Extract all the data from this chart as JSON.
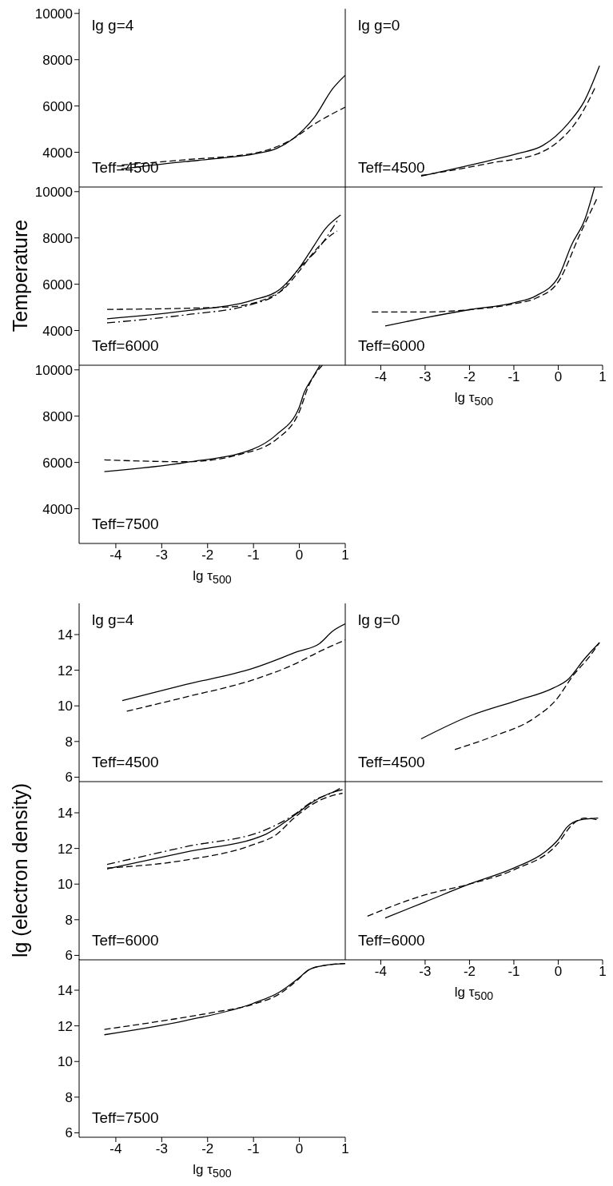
{
  "chart_data": [
    {
      "type": "line",
      "title": "lg g=4",
      "annotations": [
        "Teff=4500"
      ],
      "xlim": [
        -4.8,
        1
      ],
      "xticks": [
        -4,
        -3,
        -2,
        -1,
        0,
        1
      ],
      "ylim": [
        2500,
        10200
      ],
      "yticks": [
        4000,
        6000,
        8000,
        10000
      ],
      "tick_labels": "y",
      "series": [
        {
          "color": "#000000",
          "line_style": "solid",
          "x": [
            -3.88,
            -2.48,
            -1.89,
            -0.96,
            -0.49,
            -0.14,
            0.32,
            0.73,
            1.0
          ],
          "values": [
            3280,
            3600,
            3710,
            3940,
            4170,
            4580,
            5490,
            6760,
            7330
          ]
        },
        {
          "color": "#000000",
          "line_style": "dashed",
          "x": [
            -3.87,
            -2.48,
            -0.96,
            -0.14,
            0.32,
            1.0
          ],
          "values": [
            3450,
            3680,
            3970,
            4580,
            5210,
            5950
          ]
        }
      ]
    },
    {
      "type": "line",
      "title": "lg g=0",
      "annotations": [
        "Teff=4500"
      ],
      "xlim": [
        -4.8,
        1
      ],
      "xticks": [
        -4,
        -3,
        -2,
        -1,
        0,
        1
      ],
      "ylim": [
        2500,
        10200
      ],
      "yticks": [
        4000,
        6000,
        8000,
        10000
      ],
      "tick_labels": false,
      "series": [
        {
          "color": "#000000",
          "line_style": "solid",
          "x": [
            -3.09,
            -1.51,
            -0.93,
            -0.35,
            0.23,
            0.58,
            0.93
          ],
          "values": [
            2970,
            3660,
            3940,
            4290,
            5260,
            6180,
            7740
          ]
        },
        {
          "color": "#000000",
          "line_style": "dashed",
          "x": [
            -3.09,
            -2.45,
            -1.51,
            -0.46,
            0.0,
            0.47,
            0.85
          ],
          "values": [
            3000,
            3200,
            3540,
            3940,
            4460,
            5490,
            6870
          ]
        }
      ]
    },
    {
      "type": "line",
      "ylabel": "Temperature",
      "annotations": [
        "Teff=6000"
      ],
      "xlim": [
        -4.8,
        1
      ],
      "xticks": [
        -4,
        -3,
        -2,
        -1,
        0,
        1
      ],
      "ylim": [
        2500,
        10200
      ],
      "yticks": [
        4000,
        6000,
        8000,
        10000
      ],
      "tick_labels": "y",
      "series": [
        {
          "color": "#000000",
          "line_style": "solid",
          "x": [
            -4.19,
            -2.47,
            -1.02,
            -0.43,
            -0.03,
            0.32,
            0.55,
            0.9
          ],
          "values": [
            4510,
            4850,
            5310,
            5770,
            6630,
            7670,
            8360,
            8990
          ]
        },
        {
          "color": "#000000",
          "line_style": "dashed",
          "x": [
            -4.19,
            -1.54,
            -0.43,
            -0.03,
            0.32,
            0.62,
            0.82
          ],
          "values": [
            4910,
            5020,
            5660,
            6500,
            7400,
            8010,
            8300
          ]
        },
        {
          "color": "#000000",
          "line_style": "dashdot",
          "x": [
            -4.19,
            -2.47,
            -1.02,
            -0.43,
            -0.03,
            0.44,
            0.85
          ],
          "values": [
            4330,
            4680,
            5140,
            5660,
            6630,
            7610,
            8820
          ]
        }
      ]
    },
    {
      "type": "line",
      "xlabel": "lg τ$_{500}$",
      "annotations": [
        "Teff=6000"
      ],
      "xlim": [
        -4.8,
        1
      ],
      "xticks": [
        -4,
        -3,
        -2,
        -1,
        0,
        1
      ],
      "ylim": [
        2500,
        10200
      ],
      "yticks": [
        4000,
        6000,
        8000,
        10000
      ],
      "tick_labels": "x",
      "series": [
        {
          "color": "#000000",
          "line_style": "solid",
          "x": [
            -3.9,
            -3,
            -2,
            -1,
            -0.5,
            0,
            0.3,
            0.6,
            0.82
          ],
          "values": [
            4200,
            4550,
            4900,
            5200,
            5500,
            6300,
            7700,
            8800,
            10200
          ]
        },
        {
          "color": "#000000",
          "line_style": "dashed",
          "x": [
            -4.2,
            -3,
            -2,
            -1,
            -0.5,
            0,
            0.5,
            0.88
          ],
          "values": [
            4800,
            4800,
            4900,
            5150,
            5400,
            6100,
            8200,
            9730
          ]
        }
      ]
    },
    {
      "type": "line",
      "xlabel": "lg τ$_{500}$",
      "annotations": [
        "Teff=7500"
      ],
      "xlim": [
        -4.8,
        1
      ],
      "xticks": [
        -4,
        -3,
        -2,
        -1,
        0,
        1
      ],
      "ylim": [
        2500,
        10200
      ],
      "yticks": [
        4000,
        6000,
        8000,
        10000
      ],
      "series": [
        {
          "color": "#000000",
          "line_style": "solid",
          "x": [
            -4.25,
            -2.47,
            -1.02,
            -0.5,
            0,
            0.1,
            0.3,
            0.45
          ],
          "values": [
            5600,
            6000,
            6570,
            7200,
            8400,
            9000,
            9700,
            10200
          ]
        },
        {
          "color": "#000000",
          "line_style": "dashed",
          "x": [
            -4.25,
            -2.47,
            -1.31,
            -0.5,
            0,
            0.2,
            0.5
          ],
          "values": [
            6110,
            6030,
            6340,
            7000,
            8200,
            9300,
            10200
          ]
        }
      ]
    },
    {
      "type": "line",
      "title": "lg g=4",
      "annotations": [
        "Teff=4500"
      ],
      "xlim": [
        -4.8,
        1
      ],
      "xticks": [
        -4,
        -3,
        -2,
        -1,
        0,
        1
      ],
      "ylim": [
        5.75,
        15.75
      ],
      "yticks": [
        6,
        8,
        10,
        12,
        14
      ],
      "tick_labels": "y",
      "series": [
        {
          "color": "#000000",
          "line_style": "solid",
          "x": [
            -3.86,
            -2.47,
            -1.02,
            -0.03,
            0.44,
            0.73,
            1.0
          ],
          "values": [
            10.3,
            11.2,
            12.1,
            13.05,
            13.5,
            14.2,
            14.6
          ]
        },
        {
          "color": "#000000",
          "line_style": "dashed",
          "x": [
            -3.76,
            -2.47,
            -1.02,
            -0.14,
            0.44,
            1.0
          ],
          "values": [
            9.7,
            10.5,
            11.45,
            12.3,
            13.05,
            13.7
          ]
        }
      ]
    },
    {
      "type": "line",
      "title": "lg g=0",
      "annotations": [
        "Teff=4500"
      ],
      "xlim": [
        -4.8,
        1
      ],
      "xticks": [
        -4,
        -3,
        -2,
        -1,
        0,
        1
      ],
      "ylim": [
        5.75,
        15.75
      ],
      "yticks": [
        6,
        8,
        10,
        12,
        14
      ],
      "tick_labels": false,
      "series": [
        {
          "color": "#000000",
          "line_style": "solid",
          "x": [
            -3.09,
            -1.98,
            -0.93,
            -0.11,
            0.23,
            0.58,
            0.93
          ],
          "values": [
            8.15,
            9.45,
            10.3,
            11.0,
            11.5,
            12.6,
            13.55
          ]
        },
        {
          "color": "#000000",
          "line_style": "dashed",
          "x": [
            -2.33,
            -1.51,
            -0.52,
            -0.06,
            0.35,
            0.7,
            0.93
          ],
          "values": [
            7.55,
            8.25,
            9.35,
            10.3,
            11.75,
            12.75,
            13.55
          ]
        }
      ]
    },
    {
      "type": "line",
      "ylabel": "lg (electron density)",
      "annotations": [
        "Teff=6000"
      ],
      "xlim": [
        -4.8,
        1
      ],
      "xticks": [
        -4,
        -3,
        -2,
        -1,
        0,
        1
      ],
      "ylim": [
        5.75,
        15.75
      ],
      "yticks": [
        6,
        8,
        10,
        12,
        14
      ],
      "tick_labels": "y",
      "series": [
        {
          "color": "#000000",
          "line_style": "solid",
          "x": [
            -4.19,
            -2.47,
            -0.73,
            -0.14,
            0.32,
            0.67,
            0.94
          ],
          "values": [
            10.85,
            11.8,
            12.8,
            13.8,
            14.65,
            15.1,
            15.3
          ]
        },
        {
          "color": "#000000",
          "line_style": "dashed",
          "x": [
            -4.19,
            -2.47,
            -1.02,
            -0.49,
            -0.14,
            0.44,
            0.94
          ],
          "values": [
            10.9,
            11.35,
            12.2,
            12.8,
            13.65,
            14.7,
            15.1
          ]
        },
        {
          "color": "#000000",
          "line_style": "dashdot",
          "x": [
            -4.19,
            -2.47,
            -0.73,
            -0.14,
            0.32,
            0.73,
            0.94
          ],
          "values": [
            11.1,
            12.1,
            13.05,
            13.85,
            14.7,
            15.15,
            15.45
          ]
        }
      ]
    },
    {
      "type": "line",
      "xlabel": "lg τ$_{500}$",
      "annotations": [
        "Teff=6000"
      ],
      "xlim": [
        -4.8,
        1
      ],
      "xticks": [
        -4,
        -3,
        -2,
        -1,
        0,
        1
      ],
      "ylim": [
        5.75,
        15.75
      ],
      "yticks": [
        6,
        8,
        10,
        12,
        14
      ],
      "tick_labels": "x",
      "series": [
        {
          "color": "#000000",
          "line_style": "solid",
          "x": [
            -3.9,
            -3,
            -2,
            -1,
            -0.3,
            0,
            0.2,
            0.5,
            0.9
          ],
          "values": [
            8.1,
            9.0,
            10.0,
            10.9,
            11.8,
            12.5,
            13.2,
            13.6,
            13.7
          ]
        },
        {
          "color": "#000000",
          "line_style": "dashed",
          "x": [
            -4.3,
            -3,
            -2,
            -1,
            0,
            0.3,
            0.6,
            0.9
          ],
          "values": [
            8.2,
            9.4,
            10.0,
            10.8,
            12.3,
            13.3,
            13.7,
            13.6
          ]
        }
      ]
    },
    {
      "type": "line",
      "xlabel": "lg τ$_{500}$",
      "annotations": [
        "Teff=7500"
      ],
      "xlim": [
        -4.8,
        1
      ],
      "xticks": [
        -4,
        -3,
        -2,
        -1,
        0,
        1
      ],
      "ylim": [
        5.75,
        15.75
      ],
      "yticks": [
        6,
        8,
        10,
        12,
        14
      ],
      "series": [
        {
          "color": "#000000",
          "line_style": "solid",
          "x": [
            -4.25,
            -2.47,
            -1.02,
            -0.43,
            -0.03,
            0.21,
            0.56,
            1.0
          ],
          "values": [
            11.5,
            12.3,
            13.25,
            13.9,
            14.65,
            15.15,
            15.4,
            15.5
          ]
        },
        {
          "color": "#000000",
          "line_style": "dashed",
          "x": [
            -4.25,
            -3.06,
            -1.89,
            -1.02,
            -0.43,
            -0.03,
            0.21,
            0.56,
            1.0
          ],
          "values": [
            11.8,
            12.25,
            12.75,
            13.2,
            13.8,
            14.6,
            15.15,
            15.4,
            15.5
          ]
        }
      ]
    }
  ]
}
